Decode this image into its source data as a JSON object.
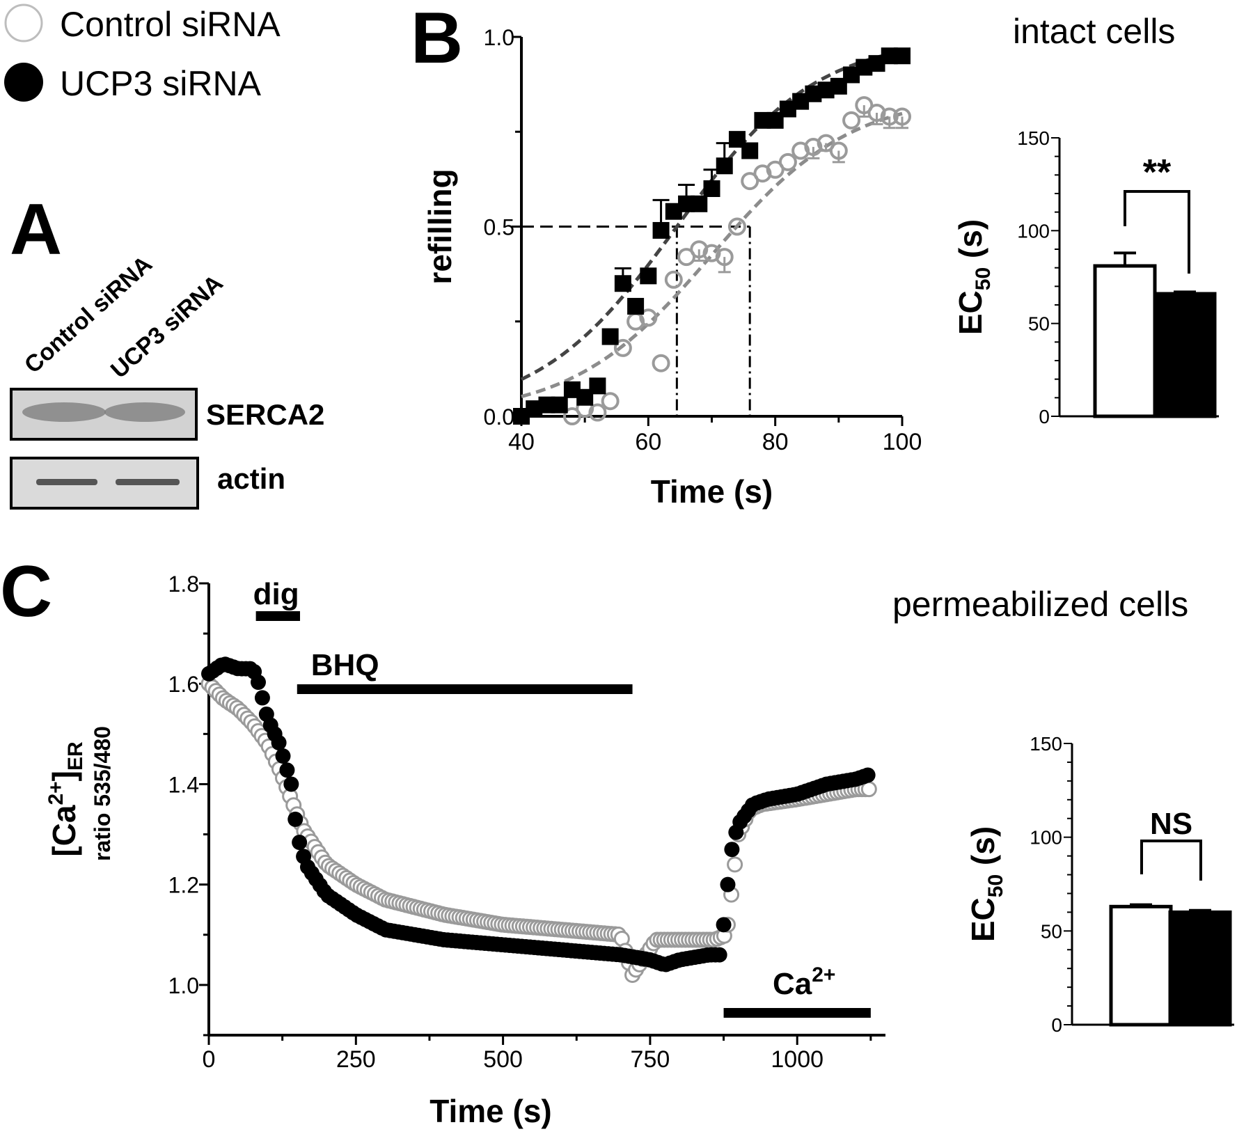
{
  "legend": {
    "control": "Control siRNA",
    "ucp3": "UCP3 siRNA"
  },
  "panel_labels": {
    "a": "A",
    "b": "B",
    "c": "C"
  },
  "western_blot": {
    "lanes": [
      "Control siRNA",
      "UCP3 siRNA"
    ],
    "bands": [
      "SERCA2",
      "actin"
    ]
  },
  "captions": {
    "intact": "intact cells",
    "permeabilized": "permeabilized cells"
  },
  "colors": {
    "control": "#9a9a9a",
    "ucp3": "#000000",
    "dashed_control_fit": "#8c8c8c",
    "dashed_ucp3_fit": "#444444"
  },
  "chart_data": [
    {
      "id": "B",
      "type": "scatter",
      "xlabel": "Time (s)",
      "ylabel": "refilling",
      "xlim": [
        40,
        100
      ],
      "ylim": [
        0,
        1
      ],
      "xticks": [
        "40",
        "60",
        "80",
        "100"
      ],
      "yticks": [
        "0.0",
        "0.5",
        "1.0"
      ],
      "half_level": 0.5,
      "ec50_markers": [
        64.5,
        76
      ],
      "series": [
        {
          "name": "Control siRNA",
          "marker": "open-circle",
          "x": [
            48,
            50,
            52,
            54,
            56,
            58,
            60,
            62,
            64,
            66,
            68,
            70,
            72,
            74,
            76,
            78,
            80,
            82,
            84,
            86,
            88,
            90,
            92,
            94,
            96,
            98,
            100
          ],
          "y": [
            0.0,
            0.02,
            0.01,
            0.04,
            0.18,
            0.25,
            0.26,
            0.14,
            0.36,
            0.42,
            0.44,
            0.43,
            0.42,
            0.5,
            0.62,
            0.64,
            0.65,
            0.67,
            0.7,
            0.71,
            0.72,
            0.7,
            0.78,
            0.82,
            0.8,
            0.79,
            0.79
          ],
          "err": [
            0,
            0,
            0,
            0,
            0,
            0,
            0,
            0,
            0,
            0,
            0.03,
            0,
            0.04,
            0,
            0,
            0,
            0,
            0,
            0,
            0.03,
            0.02,
            0.03,
            0,
            0.03,
            0.03,
            0.03,
            0.03
          ]
        },
        {
          "name": "UCP3 siRNA",
          "marker": "filled-square",
          "x": [
            40,
            42,
            44,
            46,
            48,
            50,
            52,
            54,
            56,
            58,
            60,
            62,
            64,
            66,
            68,
            70,
            72,
            74,
            76,
            78,
            80,
            82,
            84,
            86,
            88,
            90,
            92,
            94,
            96,
            98,
            100
          ],
          "y": [
            0.0,
            0.02,
            0.03,
            0.03,
            0.07,
            0.05,
            0.08,
            0.21,
            0.35,
            0.29,
            0.37,
            0.49,
            0.54,
            0.56,
            0.56,
            0.6,
            0.66,
            0.73,
            0.7,
            0.78,
            0.78,
            0.81,
            0.83,
            0.85,
            0.86,
            0.87,
            0.9,
            0.92,
            0.93,
            0.95,
            0.95
          ],
          "err": [
            0,
            0,
            0,
            0,
            0,
            0,
            0,
            0,
            0.04,
            0,
            0,
            0.08,
            0,
            0.05,
            0,
            0.05,
            0.06,
            0,
            0,
            0,
            0,
            0,
            0,
            0,
            0,
            0,
            0,
            0,
            0,
            0,
            0
          ]
        }
      ]
    },
    {
      "id": "B-inset",
      "type": "bar",
      "categories": [
        "Control siRNA",
        "UCP3 siRNA"
      ],
      "values": [
        81,
        66
      ],
      "err": [
        7,
        1
      ],
      "ylabel": "EC50 (s)",
      "ylabel_main": "EC",
      "ylabel_sub": "50",
      "ylabel_tail": " (s)",
      "ylim": [
        0,
        150
      ],
      "yticks": [
        "0",
        "50",
        "100",
        "150"
      ],
      "significance": "**",
      "colors": [
        "#ffffff",
        "#000000"
      ]
    },
    {
      "id": "C",
      "type": "scatter",
      "xlabel": "Time (s)",
      "ylabel_main": "[Ca",
      "ylabel_sup": "2+",
      "ylabel_close": "]",
      "ylabel_sub": "ER",
      "ylabel2": "ratio 535/480",
      "xlim": [
        0,
        1150
      ],
      "ylim": [
        0.9,
        1.8
      ],
      "xticks": [
        "0",
        "250",
        "500",
        "750",
        "1000"
      ],
      "yticks": [
        "1.0",
        "1.2",
        "1.4",
        "1.6",
        "1.8"
      ],
      "annotations": [
        {
          "label": "dig",
          "start": 80,
          "end": 155
        },
        {
          "label": "BHQ",
          "start": 150,
          "end": 720
        },
        {
          "label": "Ca",
          "sup": "2+",
          "start": 875,
          "end": 1125
        }
      ],
      "series": [
        {
          "name": "Control siRNA",
          "marker": "open-circle",
          "x": [
            0,
            25,
            50,
            75,
            100,
            120,
            140,
            160,
            200,
            250,
            300,
            400,
            500,
            600,
            700,
            720,
            760,
            800,
            860,
            880,
            900,
            920,
            940,
            1000,
            1050,
            1100,
            1125
          ],
          "y": [
            1.6,
            1.57,
            1.55,
            1.52,
            1.48,
            1.43,
            1.37,
            1.31,
            1.24,
            1.2,
            1.17,
            1.14,
            1.12,
            1.11,
            1.1,
            1.02,
            1.09,
            1.09,
            1.09,
            1.1,
            1.3,
            1.35,
            1.36,
            1.37,
            1.38,
            1.39,
            1.39
          ]
        },
        {
          "name": "UCP3 siRNA",
          "marker": "filled-circle",
          "x": [
            0,
            25,
            50,
            75,
            85,
            100,
            120,
            140,
            150,
            165,
            200,
            250,
            300,
            400,
            500,
            600,
            700,
            750,
            775,
            800,
            850,
            870,
            880,
            890,
            900,
            925,
            950,
            1000,
            1050,
            1100,
            1125
          ],
          "y": [
            1.62,
            1.64,
            1.63,
            1.63,
            1.6,
            1.53,
            1.48,
            1.4,
            1.3,
            1.24,
            1.18,
            1.14,
            1.11,
            1.09,
            1.08,
            1.07,
            1.06,
            1.05,
            1.04,
            1.05,
            1.06,
            1.06,
            1.18,
            1.28,
            1.32,
            1.36,
            1.37,
            1.38,
            1.4,
            1.41,
            1.42
          ]
        }
      ]
    },
    {
      "id": "C-inset",
      "type": "bar",
      "categories": [
        "Control siRNA",
        "UCP3 siRNA"
      ],
      "values": [
        63,
        60
      ],
      "err": [
        1,
        1
      ],
      "ylabel": "EC50 (s)",
      "ylabel_main": "EC",
      "ylabel_sub": "50",
      "ylabel_tail": " (s)",
      "ylim": [
        0,
        150
      ],
      "yticks": [
        "0",
        "50",
        "100",
        "150"
      ],
      "significance": "NS",
      "colors": [
        "#ffffff",
        "#000000"
      ]
    }
  ]
}
